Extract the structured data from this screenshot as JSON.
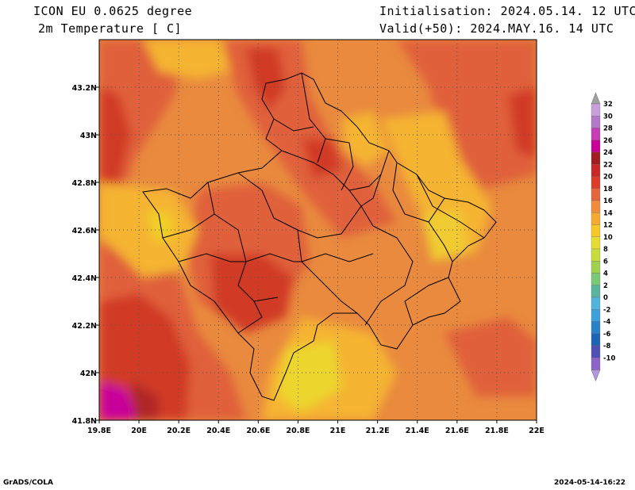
{
  "header": {
    "model": "ICON EU 0.0625 degree",
    "variable": "2m Temperature [ C]",
    "init": "Initialisation: 2024.05.14. 12 UTC",
    "valid": "Valid(+50): 2024.MAY.16. 14 UTC"
  },
  "map": {
    "lon_ticks": [
      "19.8E",
      "20E",
      "20.2E",
      "20.4E",
      "20.6E",
      "20.8E",
      "21E",
      "21.2E",
      "21.4E",
      "21.6E",
      "21.8E",
      "22E"
    ],
    "lat_ticks": [
      "43.2N",
      "43N",
      "42.8N",
      "42.6N",
      "42.4N",
      "42.2N",
      "42N",
      "41.8N"
    ]
  },
  "colorbar": {
    "labels": [
      "32",
      "30",
      "28",
      "26",
      "24",
      "22",
      "20",
      "18",
      "16",
      "14",
      "12",
      "10",
      "8",
      "6",
      "4",
      "2",
      "0",
      "-2",
      "-4",
      "-6",
      "-8",
      "-10"
    ],
    "colors": [
      "#c8a0dc",
      "#b478c8",
      "#c83cb4",
      "#c80096",
      "#a01e1e",
      "#c82828",
      "#dc3c28",
      "#e6643c",
      "#f08c3c",
      "#f5aa32",
      "#f5c828",
      "#e6dc32",
      "#c8dc3c",
      "#a0d250",
      "#78c878",
      "#5ab4a0",
      "#50b4dc",
      "#3ca0dc",
      "#2882c8",
      "#1e64b4",
      "#5050b4",
      "#8c64c8"
    ],
    "top_cap": "#a0a0a0",
    "bottom_cap": "#b496dc"
  },
  "footer": {
    "left": "GrADS/COLA",
    "right": "2024-05-14-16:22"
  }
}
